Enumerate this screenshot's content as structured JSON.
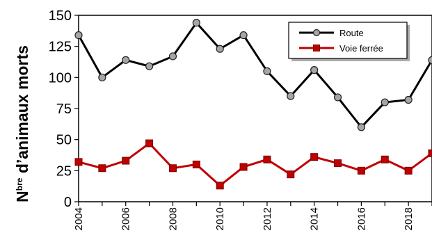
{
  "chart_data": {
    "type": "line",
    "ylabel_main": "N",
    "ylabel_sup": "bre",
    "ylabel_rest": " d’animaux morts",
    "ylim": [
      0,
      150
    ],
    "yticks": [
      0,
      25,
      50,
      75,
      100,
      125,
      150
    ],
    "xlim": [
      2004,
      2019
    ],
    "xticks": [
      2004,
      2006,
      2008,
      2010,
      2012,
      2014,
      2016,
      2018
    ],
    "x": [
      2004,
      2005,
      2006,
      2007,
      2008,
      2009,
      2010,
      2011,
      2012,
      2013,
      2014,
      2015,
      2016,
      2017,
      2018,
      2019
    ],
    "grid": false,
    "legend_position": "top-right",
    "series": [
      {
        "name": "Route",
        "color": "#000000",
        "marker": "circle",
        "marker_fill": "#a6a6a6",
        "values": [
          134,
          100,
          114,
          109,
          117,
          144,
          123,
          134,
          105,
          85,
          106,
          84,
          60,
          80,
          82,
          114
        ]
      },
      {
        "name": "Voie ferrée",
        "color": "#c00000",
        "marker": "square",
        "marker_fill": "#c00000",
        "values": [
          32,
          27,
          33,
          47,
          27,
          30,
          13,
          28,
          34,
          22,
          36,
          31,
          25,
          34,
          25,
          39
        ]
      }
    ]
  }
}
